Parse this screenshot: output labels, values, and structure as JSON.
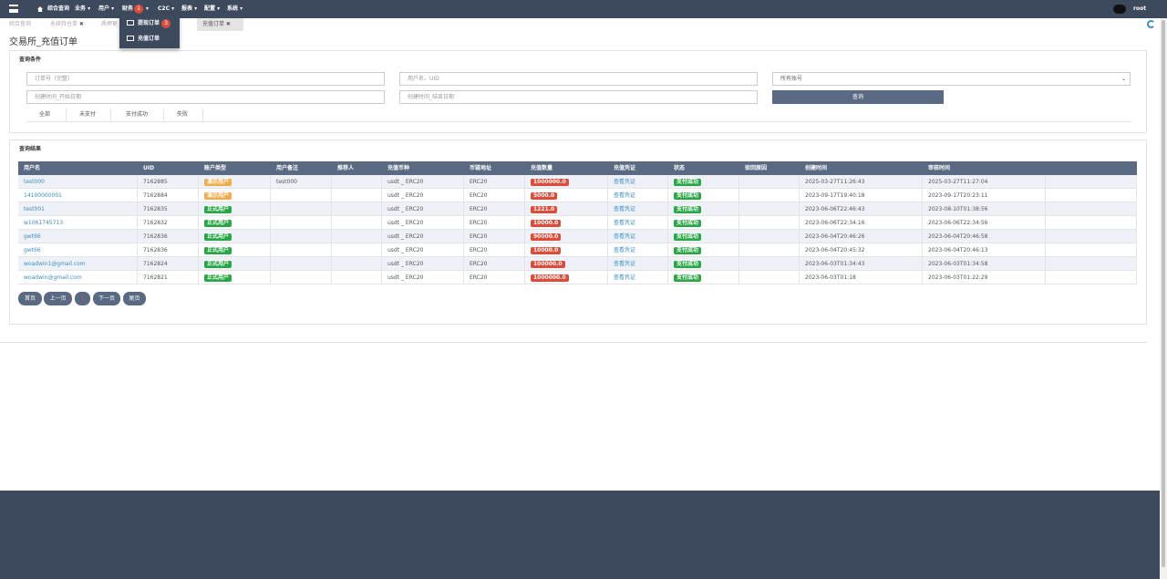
{
  "nav": {
    "items": [
      "综合查询",
      "业务",
      "用户",
      "财务",
      "C2C",
      "报表",
      "配置",
      "系统"
    ],
    "badge": 1,
    "user": "root"
  },
  "dropdown": [
    {
      "label": "提现订单",
      "badge": 3
    },
    {
      "label": "充值订单"
    }
  ],
  "tabs": [
    "综合查询",
    "永续持仓单",
    "质押更",
    "充值订单"
  ],
  "page_title": "交易所_充值订单",
  "query": {
    "title": "查询条件",
    "order_placeholder": "订单号（完整）",
    "user_placeholder": "用户名、UID",
    "account_select": "所有账号",
    "start_placeholder": "创建时间_开始日期",
    "end_placeholder": "创建时间_结束日期",
    "button": "查询",
    "status_tabs": [
      "全部",
      "未支付",
      "支付成功",
      "失败"
    ]
  },
  "results": {
    "title": "查询结果",
    "columns": [
      "用户名",
      "UID",
      "账户类型",
      "用户备注",
      "推荐人",
      "充值币种",
      "币链地址",
      "充值数量",
      "充值凭证",
      "状态",
      "驳回原因",
      "创建时间",
      "审核时间"
    ],
    "rows": [
      {
        "user": "test000",
        "uid": "7162885",
        "type": "演示用户",
        "type_color": "#f0ad4e",
        "remark": "test000",
        "coin": "usdt _ ERC20",
        "chain": "ERC20",
        "amount": "1000000.0",
        "proof": "查看凭证",
        "status": "支付成功",
        "created": "2025-03-27T11:26:43",
        "reviewed": "2025-03-27T11:27:04"
      },
      {
        "user": "14100000001",
        "uid": "7162884",
        "type": "演示用户",
        "type_color": "#f0ad4e",
        "coin": "usdt _ ERC20",
        "chain": "ERC20",
        "amount": "5000.0",
        "proof": "查看凭证",
        "status": "支付成功",
        "created": "2023-09-17T19:40:18",
        "reviewed": "2023-09-17T20:23:11"
      },
      {
        "user": "test001",
        "uid": "7162835",
        "type": "正式用户",
        "type_color": "#28a745",
        "coin": "usdt _ ERC20",
        "chain": "ERC20",
        "amount": "1221.0",
        "proof": "查看凭证",
        "status": "支付成功",
        "created": "2023-06-06T22:46:43",
        "reviewed": "2023-08-10T01:38:56"
      },
      {
        "user": "w1061745713",
        "uid": "7162832",
        "type": "正式用户",
        "type_color": "#28a745",
        "coin": "usdt _ ERC20",
        "chain": "ERC20",
        "amount": "10000.0",
        "proof": "查看凭证",
        "status": "支付成功",
        "created": "2023-06-06T22:34:16",
        "reviewed": "2023-06-06T22:34:56"
      },
      {
        "user": "gwt66",
        "uid": "7162836",
        "type": "正式用户",
        "type_color": "#28a745",
        "coin": "usdt _ ERC20",
        "chain": "ERC20",
        "amount": "90000.0",
        "proof": "查看凭证",
        "status": "支付成功",
        "created": "2023-06-04T20:46:26",
        "reviewed": "2023-06-04T20:46:58"
      },
      {
        "user": "gwt66",
        "uid": "7162836",
        "type": "正式用户",
        "type_color": "#28a745",
        "coin": "usdt _ ERC20",
        "chain": "ERC20",
        "amount": "10000.0",
        "proof": "查看凭证",
        "status": "支付成功",
        "created": "2023-06-04T20:45:32",
        "reviewed": "2023-06-04T20:46:13"
      },
      {
        "user": "woadwin1@gmail.com",
        "uid": "7162824",
        "type": "正式用户",
        "type_color": "#28a745",
        "coin": "usdt _ ERC20",
        "chain": "ERC20",
        "amount": "100000.0",
        "proof": "查看凭证",
        "status": "支付成功",
        "created": "2023-06-03T01:34:43",
        "reviewed": "2023-06-03T01:34:58"
      },
      {
        "user": "woadwin@gmail.com",
        "uid": "7162821",
        "type": "正式用户",
        "type_color": "#28a745",
        "coin": "usdt _ ERC20",
        "chain": "ERC20",
        "amount": "1000000.0",
        "proof": "查看凭证",
        "status": "支付成功",
        "created": "2023-06-03T01:18",
        "reviewed": "2023-06-03T01:22:29"
      }
    ]
  },
  "pagination": [
    "首页",
    "上一页",
    "1",
    "下一页",
    "尾页"
  ]
}
